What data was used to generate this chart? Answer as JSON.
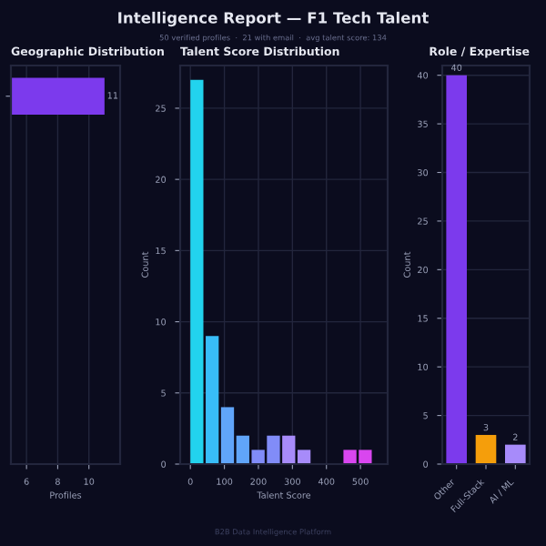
{
  "chart_data": [
    {
      "type": "other",
      "title": "Intelligence Report — F1 Tech Talent",
      "subtitle": "50 verified profiles  ·  21 with email  ·  avg talent score: 134",
      "annotations": [
        "B2B Data Intelligence Platform"
      ]
    },
    {
      "type": "bar",
      "title": "Geographic Distribution",
      "orientation": "horizontal",
      "categories": [
        null
      ],
      "values": [
        11
      ],
      "colors": [
        "#7c3aed"
      ],
      "xlim": [
        5,
        12
      ],
      "xticks": [
        6,
        8,
        10
      ],
      "xlabel": "Profiles",
      "data_labels": true,
      "grid": "x",
      "tick_labels": "x"
    },
    {
      "type": "histogram",
      "title": "Talent Score Distribution",
      "bins": [
        0,
        45,
        90,
        135,
        180,
        225,
        270,
        315,
        360,
        405,
        450,
        495,
        540
      ],
      "values": [
        27,
        9,
        4,
        2,
        1,
        2,
        2,
        1,
        0,
        0,
        1,
        1
      ],
      "colors": [
        "#22d3ee",
        "#38bdf8",
        "#60a5fa",
        "#60a5fa",
        "#818cf8",
        "#818cf8",
        "#a78bfa",
        "#a78bfa",
        "#c084fc",
        "#c084fc",
        "#d946ef",
        "#d946ef"
      ],
      "xlim": [
        -30,
        580
      ],
      "xticks": [
        0,
        100,
        200,
        300,
        400,
        500
      ],
      "ylim": [
        0,
        28
      ],
      "yticks": [
        0,
        5,
        10,
        15,
        20,
        25
      ],
      "xlabel": "Talent Score",
      "ylabel": "Count",
      "grid": true
    },
    {
      "type": "bar",
      "title": "Role / Expertise",
      "categories": [
        "Other",
        "Full-Stack",
        "AI / ML"
      ],
      "values": [
        40,
        3,
        2
      ],
      "colors": [
        "#7c3aed",
        "#f59e0b",
        "#a78bfa"
      ],
      "ylim": [
        0,
        41
      ],
      "yticks": [
        0,
        5,
        10,
        15,
        20,
        25,
        30,
        35,
        40
      ],
      "ylabel": "Count",
      "data_labels": true,
      "grid": "y"
    }
  ]
}
